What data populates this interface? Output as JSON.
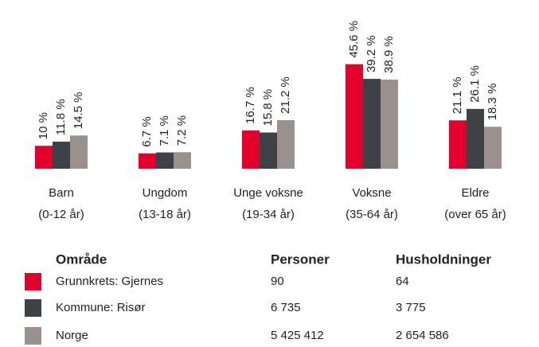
{
  "chart_data": {
    "type": "bar",
    "categories": [
      [
        "Barn",
        "(0-12 år)"
      ],
      [
        "Ungdom",
        "(13-18 år)"
      ],
      [
        "Unge voksne",
        "(19-34 år)"
      ],
      [
        "Voksne",
        "(35-64 år)"
      ],
      [
        "Eldre",
        "(over 65 år)"
      ]
    ],
    "series": [
      {
        "name": "Grunnkrets: Gjernes",
        "color": "#e4002b",
        "values": [
          10,
          6.7,
          16.7,
          45.6,
          21.1
        ],
        "value_labels": [
          "10 %",
          "6.7 %",
          "16.7 %",
          "45.6 %",
          "21.1 %"
        ],
        "personer": "90",
        "husholdninger": "64"
      },
      {
        "name": "Kommune: Risør",
        "color": "#3d4246",
        "values": [
          11.8,
          7.1,
          15.8,
          39.2,
          26.1
        ],
        "value_labels": [
          "11.8 %",
          "7.1 %",
          "15.8 %",
          "39.2 %",
          "26.1 %"
        ],
        "personer": "6 735",
        "husholdninger": "3 775"
      },
      {
        "name": "Norge",
        "color": "#9b918c",
        "values": [
          14.5,
          7.2,
          21.2,
          38.9,
          18.3
        ],
        "value_labels": [
          "14.5 %",
          "7.2 %",
          "21.2 %",
          "38.9 %",
          "18.3 %"
        ],
        "personer": "5 425 412",
        "husholdninger": "2 654 586"
      }
    ],
    "ylim": [
      0,
      50
    ],
    "legend_headers": [
      "Område",
      "Personer",
      "Husholdninger"
    ]
  }
}
